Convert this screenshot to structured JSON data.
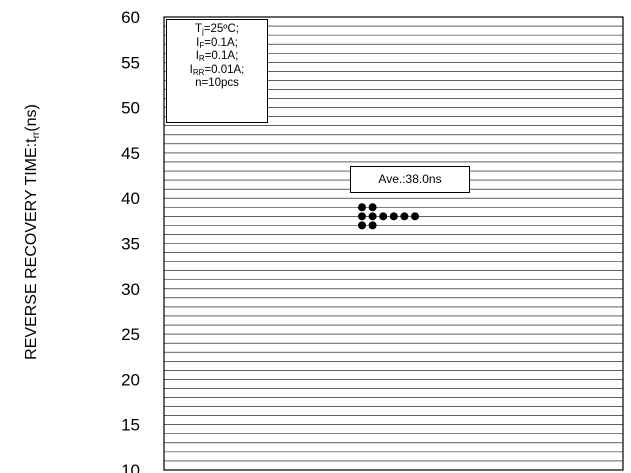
{
  "chart_data": {
    "type": "scatter",
    "ylabel": "REVERSE RECOVERY TIME:t",
    "ylabel_sub": "rr",
    "ylabel_unit": "(ns)",
    "ylim": [
      10,
      60
    ],
    "yticks": [
      "60",
      "55",
      "50",
      "45",
      "40",
      "35",
      "30",
      "25",
      "20",
      "15",
      "10"
    ],
    "grid": "horizontal, every 1 ns",
    "conditions": [
      {
        "main": "T",
        "sub": "j",
        "rest": "=25ºC;"
      },
      {
        "main": "I",
        "sub": "F",
        "rest": "=0.1A;"
      },
      {
        "main": "I",
        "sub": "R",
        "rest": "=0.1A;"
      },
      {
        "main": "I",
        "sub": "RR",
        "rest": "=0.01A;"
      },
      {
        "main": "n=10pcs",
        "sub": "",
        "rest": ""
      }
    ],
    "average_label": "Ave.:38.0ns",
    "points_y": [
      39,
      39,
      38,
      38,
      38,
      38,
      38,
      38,
      37,
      37
    ],
    "point_color": "#000000"
  }
}
